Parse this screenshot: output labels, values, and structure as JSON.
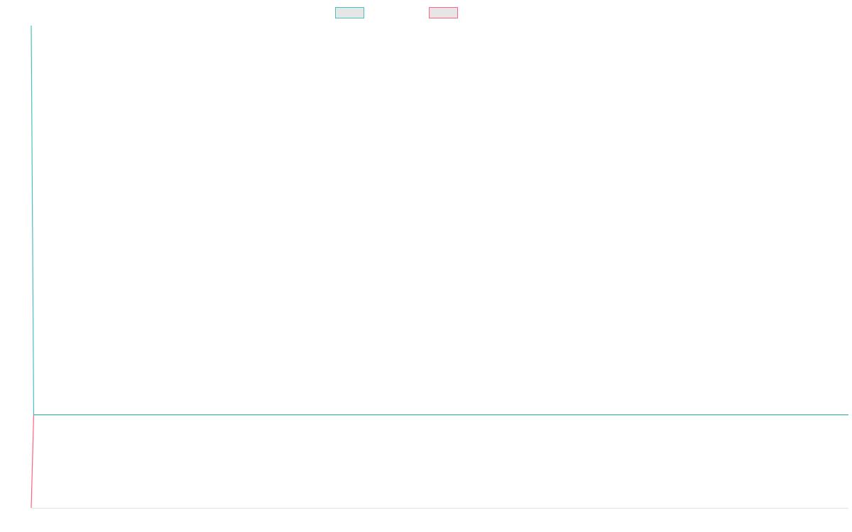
{
  "chart_data": {
    "type": "line",
    "x": [
      0,
      3,
      1000
    ],
    "xlim": [
      0,
      1000
    ],
    "ylim": [
      0,
      100
    ],
    "legend": "top",
    "series": [
      {
        "color": "#ff6384",
        "values": [
          0,
          19.3,
          19.3
        ]
      },
      {
        "color": "#4bc0c0",
        "values": [
          100,
          19.3,
          19.3
        ]
      }
    ]
  }
}
